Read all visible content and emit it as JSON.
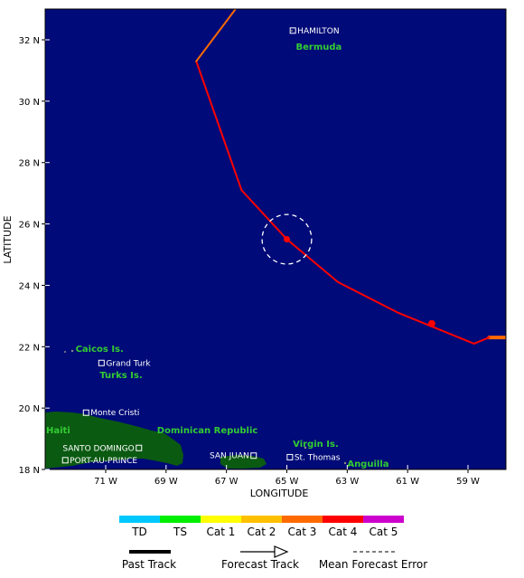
{
  "map": {
    "x_axis_title": "LONGITUDE",
    "y_axis_title": "LATITUDE",
    "lon_ticks": [
      {
        "lon": -71,
        "label": "71 W"
      },
      {
        "lon": -69,
        "label": "69 W"
      },
      {
        "lon": -67,
        "label": "67 W"
      },
      {
        "lon": -65,
        "label": "65 W"
      },
      {
        "lon": -63,
        "label": "63 W"
      },
      {
        "lon": -61,
        "label": "61 W"
      },
      {
        "lon": -59,
        "label": "59 W"
      }
    ],
    "lat_ticks": [
      {
        "lat": 32,
        "label": "32 N"
      },
      {
        "lat": 30,
        "label": "30 N"
      },
      {
        "lat": 28,
        "label": "28 N"
      },
      {
        "lat": 26,
        "label": "26 N"
      },
      {
        "lat": 24,
        "label": "24 N"
      },
      {
        "lat": 22,
        "label": "22 N"
      },
      {
        "lat": 20,
        "label": "20 N"
      },
      {
        "lat": 18,
        "label": "18 N"
      }
    ],
    "lon_range": [
      -73,
      -57.7
    ],
    "lat_range": [
      18,
      33
    ],
    "colors": {
      "ocean": "#000a78",
      "land": "#0b5a12",
      "track_red": "#ff0000",
      "track_orange": "#ff6a00",
      "track_yellow": "#ffee00",
      "error_circle": "#ffffff"
    }
  },
  "places": [
    {
      "name": "HAMILTON",
      "lon": -64.8,
      "lat": 32.3
    },
    {
      "name": "Grand Turk",
      "lon": -71.14,
      "lat": 21.47
    },
    {
      "name": "Monte Cristi",
      "lon": -71.65,
      "lat": 19.85
    },
    {
      "name": "SANTO DOMINGO",
      "lon": -69.9,
      "lat": 18.7
    },
    {
      "name": "PORT-AU-PRINCE",
      "lon": -72.34,
      "lat": 18.3
    },
    {
      "name": "SAN JUAN",
      "lon": -66.1,
      "lat": 18.45
    },
    {
      "name": "St. Thomas",
      "lon": -64.9,
      "lat": 18.4
    }
  ],
  "regions": [
    {
      "name": "Bermuda",
      "lon": -64.7,
      "lat": 31.8
    },
    {
      "name": "Caicos Is.",
      "lon": -72.0,
      "lat": 21.95
    },
    {
      "name": "Turks Is.",
      "lon": -71.2,
      "lat": 21.1
    },
    {
      "name": "Haiti",
      "lon": -73.0,
      "lat": 19.3
    },
    {
      "name": "Dominican Republic",
      "lon": -69.3,
      "lat": 19.3
    },
    {
      "name": "Virgin Is.",
      "lon": -64.8,
      "lat": 18.85
    },
    {
      "name": "Anguilla",
      "lon": -63.0,
      "lat": 18.2
    }
  ],
  "track": {
    "forecast_points": [
      {
        "lon": -57.7,
        "lat": 22.3,
        "category": "Cat 1"
      },
      {
        "lon": -58.3,
        "lat": 22.3,
        "category": "Cat 3"
      },
      {
        "lon": -58.8,
        "lat": 22.1,
        "category": "Cat 4"
      },
      {
        "lon": -60.3,
        "lat": 22.7,
        "category": "Cat 4"
      },
      {
        "lon": -61.3,
        "lat": 23.1,
        "category": "Cat 4"
      },
      {
        "lon": -63.3,
        "lat": 24.1,
        "category": "Cat 4"
      },
      {
        "lon": -65.0,
        "lat": 25.5,
        "category": "Cat 4"
      },
      {
        "lon": -66.5,
        "lat": 27.1,
        "category": "Cat 4"
      },
      {
        "lon": -68.0,
        "lat": 31.3,
        "category": "Cat 4"
      },
      {
        "lon": -66.7,
        "lat": 33.0,
        "category": "Cat 3"
      }
    ],
    "markers": [
      {
        "lon": -60.2,
        "lat": 22.75
      },
      {
        "lon": -65.0,
        "lat": 25.5
      }
    ],
    "error_circle": {
      "lon": -65.0,
      "lat": 25.5,
      "radius_deg": 0.82
    }
  },
  "legend": {
    "categories": [
      {
        "label": "TD",
        "color": "#00c8ff"
      },
      {
        "label": "TS",
        "color": "#00ee00"
      },
      {
        "label": "Cat 1",
        "color": "#ffff00"
      },
      {
        "label": "Cat 2",
        "color": "#ffc000"
      },
      {
        "label": "Cat 3",
        "color": "#ff6a00"
      },
      {
        "label": "Cat 4",
        "color": "#ff0000"
      },
      {
        "label": "Cat 5",
        "color": "#cc00cc"
      }
    ],
    "past_track_label": "Past Track",
    "forecast_track_label": "Forecast Track",
    "error_label": "Mean Forecast Error"
  }
}
